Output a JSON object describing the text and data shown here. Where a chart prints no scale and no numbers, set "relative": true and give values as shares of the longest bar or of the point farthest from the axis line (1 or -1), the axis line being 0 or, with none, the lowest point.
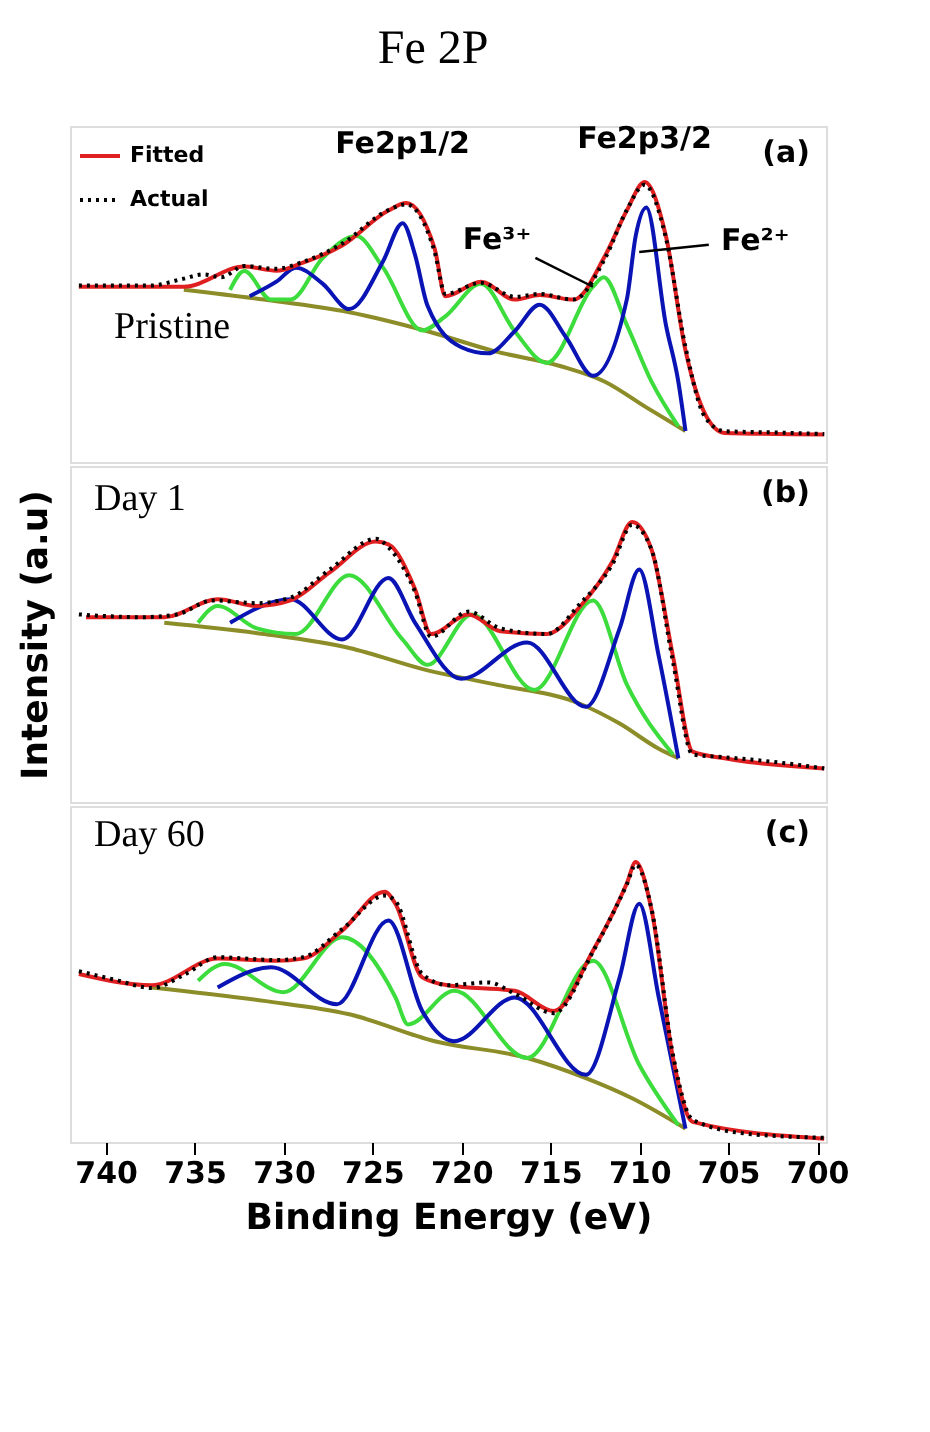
{
  "chart_data": [
    {
      "type": "line",
      "title": "Fe 2P",
      "relative": true,
      "xlim": [
        742,
        699.5
      ],
      "xticks": [
        740,
        735,
        730,
        725,
        720,
        715,
        710,
        705,
        700
      ],
      "tick_labels": false,
      "legend": "top left",
      "annotations": [
        "(a)",
        "Pristine",
        {
          "text": "Fe2p1/2",
          "x": 723.3,
          "y": 0.925
        },
        {
          "text": "Fe2p3/2",
          "x": 709.7,
          "y": 1.0
        },
        {
          "text": "Fe³⁺",
          "x": 712.6,
          "y": 0.626
        },
        {
          "text": "Fe²⁺",
          "x": 710.0,
          "y": 0.75
        }
      ],
      "series": [
        {
          "color": "#8c8c28",
          "x": [
            735.6,
            731.1,
            726.3,
            721.9,
            718.1,
            714.4,
            711.9,
            709.6,
            707.4
          ],
          "values": [
            0.615,
            0.58,
            0.535,
            0.467,
            0.395,
            0.342,
            0.286,
            0.195,
            0.111
          ]
        },
        {
          "color": "#3ddc3d",
          "x": [
            733.0,
            732.2,
            730.7,
            729.6,
            727.8,
            725.9,
            724.4,
            722.2,
            720.9,
            718.9,
            717.0,
            715.2,
            712.6,
            712.0,
            710.7,
            709.3,
            707.8
          ],
          "values": [
            0.615,
            0.682,
            0.58,
            0.58,
            0.728,
            0.807,
            0.694,
            0.47,
            0.52,
            0.637,
            0.467,
            0.354,
            0.626,
            0.66,
            0.49,
            0.286,
            0.127
          ]
        },
        {
          "color": "#0a14b4",
          "x": [
            731.9,
            730.4,
            729.3,
            727.8,
            726.3,
            724.4,
            723.3,
            722.6,
            721.9,
            720.0,
            718.5,
            717.0,
            715.6,
            714.1,
            712.6,
            710.7,
            710.2,
            709.6,
            708.5,
            707.8,
            707.4
          ],
          "values": [
            0.592,
            0.644,
            0.694,
            0.637,
            0.546,
            0.717,
            0.853,
            0.739,
            0.558,
            0.41,
            0.388,
            0.467,
            0.562,
            0.444,
            0.308,
            0.58,
            0.807,
            0.909,
            0.49,
            0.286,
            0.111
          ]
        },
        {
          "name": "Fitted",
          "color": "#e02020",
          "x": [
            741.5,
            735.6,
            732.2,
            730.4,
            728.9,
            726.7,
            724.1,
            723.1,
            721.5,
            720.9,
            718.9,
            717.0,
            715.6,
            713.7,
            711.9,
            710.7,
            709.7,
            708.5,
            707.4,
            706.3,
            705.2,
            699.6
          ],
          "values": [
            0.626,
            0.626,
            0.698,
            0.683,
            0.712,
            0.773,
            0.898,
            0.925,
            0.762,
            0.592,
            0.644,
            0.58,
            0.596,
            0.58,
            0.739,
            0.898,
            1.0,
            0.807,
            0.399,
            0.172,
            0.104,
            0.098
          ]
        },
        {
          "name": "Actual",
          "color": "#000000",
          "line_style": "dotted",
          "x": [
            741.5,
            737.5,
            735.6,
            734.5,
            733.5,
            732.2,
            730.4,
            728.9,
            726.7,
            724.1,
            723.1,
            721.5,
            720.9,
            718.9,
            717.0,
            715.6,
            713.7,
            711.9,
            710.7,
            709.7,
            708.5,
            707.4,
            706.3,
            705.2,
            702.0,
            699.6
          ],
          "values": [
            0.63,
            0.63,
            0.655,
            0.67,
            0.66,
            0.7,
            0.69,
            0.715,
            0.78,
            0.9,
            0.92,
            0.75,
            0.6,
            0.64,
            0.59,
            0.6,
            0.58,
            0.73,
            0.9,
            0.99,
            0.8,
            0.41,
            0.16,
            0.11,
            0.105,
            0.1
          ]
        }
      ]
    },
    {
      "type": "line",
      "ylabel": "Intensity (a.u)",
      "relative": true,
      "xlim": [
        742,
        699.5
      ],
      "xticks": [
        740,
        735,
        730,
        725,
        720,
        715,
        710,
        705,
        700
      ],
      "tick_labels": false,
      "annotations": [
        "(b)",
        "Day 1"
      ],
      "series": [
        {
          "color": "#8c8c28",
          "x": [
            736.7,
            731.1,
            726.3,
            721.9,
            718.1,
            713.3,
            711.1,
            708.9,
            707.8
          ],
          "values": [
            0.64,
            0.6,
            0.55,
            0.47,
            0.42,
            0.35,
            0.28,
            0.19,
            0.156
          ]
        },
        {
          "color": "#3ddc3d",
          "x": [
            734.8,
            733.7,
            731.5,
            729.3,
            726.3,
            723.3,
            721.9,
            719.4,
            715.9,
            712.6,
            710.7,
            708.1
          ],
          "values": [
            0.64,
            0.7,
            0.62,
            0.6,
            0.81,
            0.58,
            0.49,
            0.67,
            0.4,
            0.72,
            0.42,
            0.17
          ]
        },
        {
          "color": "#0a14b4",
          "x": [
            733.0,
            729.6,
            726.7,
            724.1,
            722.6,
            720.0,
            716.3,
            713.0,
            711.1,
            710.0,
            708.9,
            707.8
          ],
          "values": [
            0.64,
            0.724,
            0.58,
            0.8,
            0.64,
            0.44,
            0.57,
            0.34,
            0.62,
            0.83,
            0.52,
            0.156
          ]
        },
        {
          "name": "Fitted",
          "color": "#e02020",
          "x": [
            741.1,
            736.7,
            733.7,
            731.5,
            729.6,
            727.4,
            724.8,
            724.1,
            722.6,
            721.7,
            719.6,
            717.8,
            715.2,
            713.3,
            711.5,
            710.4,
            709.3,
            708.1,
            707.0,
            705.2,
            699.6
          ],
          "values": [
            0.66,
            0.66,
            0.724,
            0.7,
            0.72,
            0.82,
            0.93,
            0.92,
            0.76,
            0.6,
            0.67,
            0.61,
            0.6,
            0.7,
            0.86,
            1.0,
            0.9,
            0.52,
            0.18,
            0.156,
            0.12
          ]
        },
        {
          "name": "Actual",
          "color": "#000000",
          "line_style": "dotted",
          "x": [
            741.5,
            738.0,
            736.0,
            734.0,
            731.5,
            729.6,
            727.4,
            724.8,
            724.1,
            722.6,
            721.7,
            719.6,
            717.8,
            715.2,
            713.3,
            711.5,
            710.4,
            709.3,
            708.1,
            707.0,
            705.2,
            702.0,
            699.6
          ],
          "values": [
            0.67,
            0.66,
            0.67,
            0.72,
            0.71,
            0.73,
            0.83,
            0.94,
            0.91,
            0.75,
            0.59,
            0.68,
            0.62,
            0.6,
            0.71,
            0.85,
            0.99,
            0.9,
            0.5,
            0.17,
            0.16,
            0.14,
            0.12
          ]
        }
      ]
    },
    {
      "type": "line",
      "xlabel": "Binding Energy (eV)",
      "relative": true,
      "xlim": [
        742,
        699.5
      ],
      "xticks": [
        740,
        735,
        730,
        725,
        720,
        715,
        710,
        705,
        700
      ],
      "tick_labels": "x",
      "annotations": [
        "(c)",
        "Day 60"
      ],
      "series": [
        {
          "color": "#8c8c28",
          "x": [
            737.4,
            731.1,
            726.3,
            721.5,
            716.3,
            713.0,
            710.4,
            707.4
          ],
          "values": [
            0.552,
            0.504,
            0.456,
            0.36,
            0.3,
            0.228,
            0.156,
            0.048
          ]
        },
        {
          "color": "#3ddc3d",
          "x": [
            734.8,
            733.3,
            730.0,
            726.7,
            723.7,
            723.0,
            720.4,
            716.3,
            712.6,
            710.0,
            707.8
          ],
          "values": [
            0.576,
            0.636,
            0.535,
            0.731,
            0.516,
            0.42,
            0.54,
            0.3,
            0.647,
            0.276,
            0.06
          ]
        },
        {
          "color": "#0a14b4",
          "x": [
            733.7,
            730.7,
            727.0,
            724.1,
            722.2,
            720.4,
            717.0,
            713.0,
            711.1,
            710.0,
            708.9,
            707.4
          ],
          "values": [
            0.552,
            0.624,
            0.492,
            0.791,
            0.468,
            0.36,
            0.516,
            0.24,
            0.588,
            0.851,
            0.516,
            0.048
          ]
        },
        {
          "name": "Fitted",
          "color": "#e02020",
          "x": [
            741.5,
            737.4,
            733.7,
            730.4,
            728.9,
            726.7,
            724.3,
            723.7,
            722.2,
            720.7,
            717.0,
            714.8,
            712.6,
            710.7,
            710.2,
            709.3,
            708.1,
            707.0,
            699.6
          ],
          "values": [
            0.6,
            0.56,
            0.655,
            0.647,
            0.655,
            0.755,
            0.894,
            0.85,
            0.588,
            0.559,
            0.54,
            0.468,
            0.683,
            0.923,
            1.0,
            0.827,
            0.3,
            0.072,
            0.012
          ]
        },
        {
          "name": "Actual",
          "color": "#000000",
          "line_style": "dotted",
          "x": [
            741.5,
            739.5,
            737.4,
            735.5,
            733.7,
            730.4,
            728.9,
            726.7,
            724.3,
            723.7,
            722.2,
            720.7,
            718.5,
            717.0,
            714.8,
            712.6,
            710.7,
            710.2,
            709.3,
            708.1,
            707.0,
            704.0,
            699.6
          ],
          "values": [
            0.61,
            0.58,
            0.55,
            0.6,
            0.66,
            0.65,
            0.66,
            0.76,
            0.88,
            0.86,
            0.6,
            0.56,
            0.57,
            0.53,
            0.46,
            0.68,
            0.92,
            0.99,
            0.83,
            0.31,
            0.08,
            0.03,
            0.015
          ]
        }
      ]
    }
  ]
}
